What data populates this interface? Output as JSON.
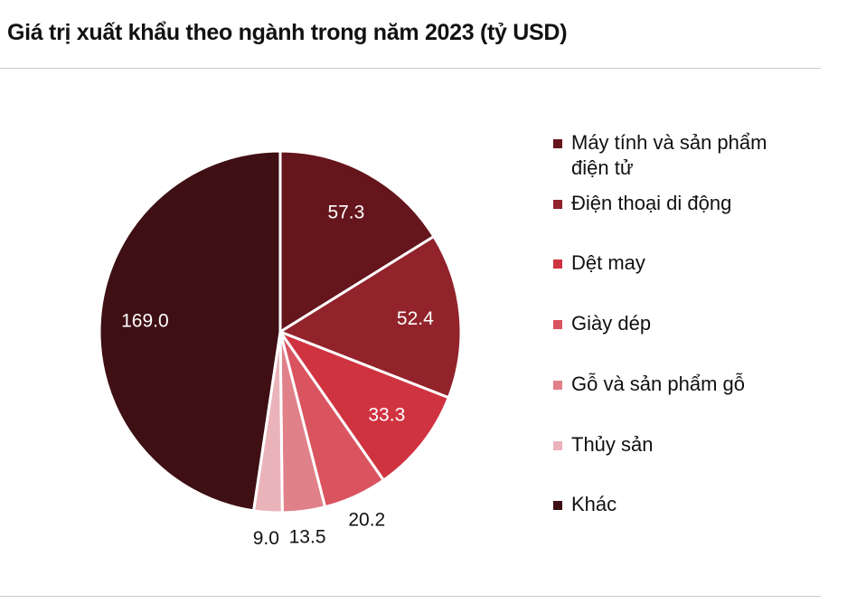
{
  "chart_data": {
    "type": "pie",
    "title": "Giá trị xuất khẩu theo ngành trong năm 2023 (tỷ USD)",
    "categories": [
      "Máy tính và sản phẩm điện tử",
      "Điện thoại di động",
      "Dệt may",
      "Giày dép",
      "Gỗ và sản phẩm gỗ",
      "Thủy sản",
      "Khác"
    ],
    "values": [
      57.3,
      52.4,
      33.3,
      20.2,
      13.5,
      9.0,
      169.0
    ],
    "value_labels": [
      "57.3",
      "52.4",
      "33.3",
      "20.2",
      "13.5",
      "9.0",
      "169.0"
    ],
    "colors": [
      "#65151c",
      "#92232b",
      "#d03340",
      "#d9545f",
      "#e08089",
      "#eab3ba",
      "#3e0f13"
    ]
  }
}
